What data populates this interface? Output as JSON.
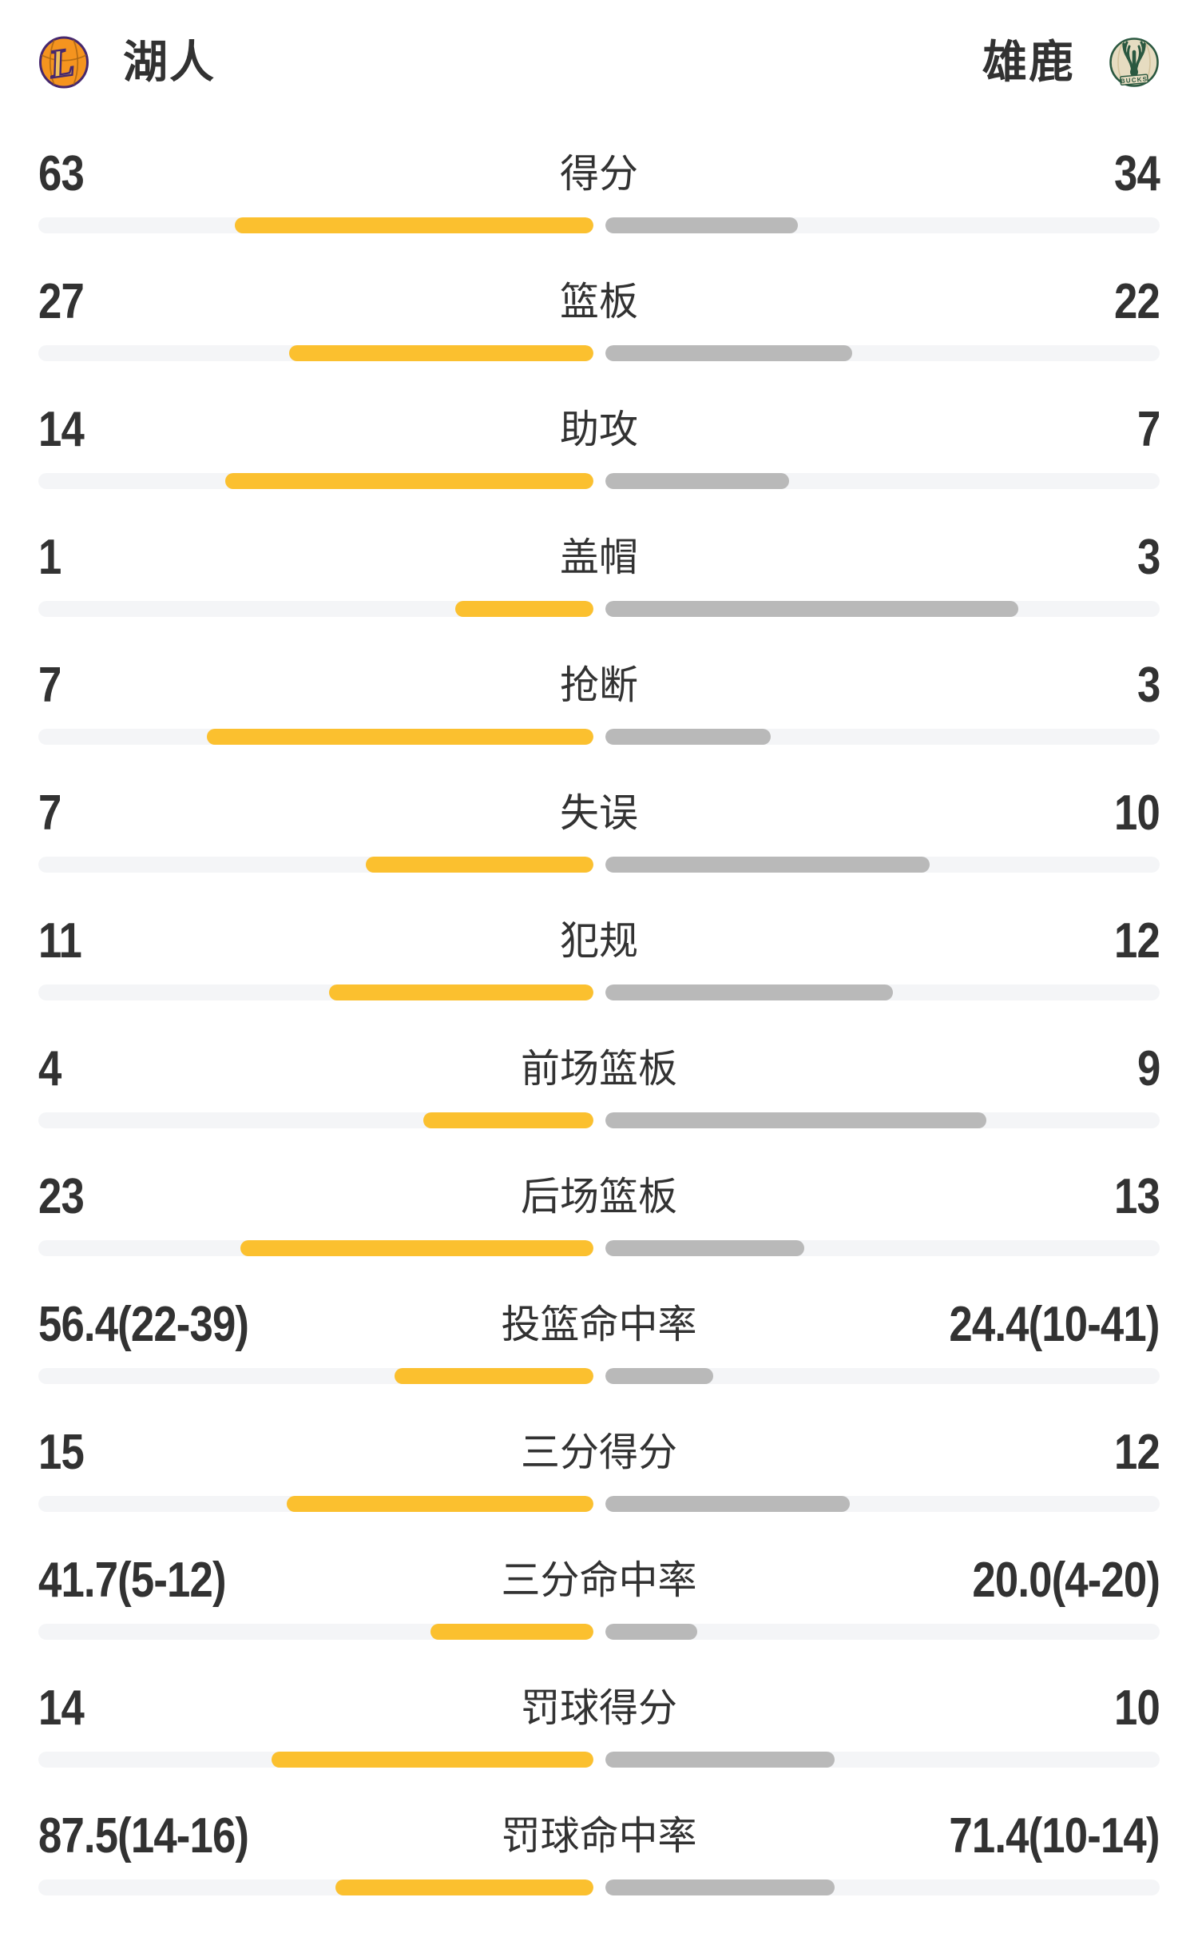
{
  "header": {
    "home_team": {
      "name": "湖人",
      "logo_icon": "lakers-logo"
    },
    "away_team": {
      "name": "雄鹿",
      "logo_icon": "bucks-logo"
    }
  },
  "colors": {
    "home_bar": "#fbc02f",
    "away_bar": "#b9b9b9",
    "track": "#f4f5f7",
    "text": "#323232",
    "lakers_purple": "#46286e",
    "lakers_orange": "#f5941f",
    "lakers_gold": "#efc05b",
    "bucks_green": "#2a5840",
    "bucks_cream": "#e6dcc1"
  },
  "stats": [
    {
      "label": "得分",
      "format": "count",
      "home": {
        "display": "63",
        "value": 63
      },
      "away": {
        "display": "34",
        "value": 34
      }
    },
    {
      "label": "篮板",
      "format": "count",
      "home": {
        "display": "27",
        "value": 27
      },
      "away": {
        "display": "22",
        "value": 22
      }
    },
    {
      "label": "助攻",
      "format": "count",
      "home": {
        "display": "14",
        "value": 14
      },
      "away": {
        "display": "7",
        "value": 7
      }
    },
    {
      "label": "盖帽",
      "format": "count",
      "home": {
        "display": "1",
        "value": 1
      },
      "away": {
        "display": "3",
        "value": 3
      }
    },
    {
      "label": "抢断",
      "format": "count",
      "home": {
        "display": "7",
        "value": 7
      },
      "away": {
        "display": "3",
        "value": 3
      }
    },
    {
      "label": "失误",
      "format": "count",
      "home": {
        "display": "7",
        "value": 7
      },
      "away": {
        "display": "10",
        "value": 10
      }
    },
    {
      "label": "犯规",
      "format": "count",
      "home": {
        "display": "11",
        "value": 11
      },
      "away": {
        "display": "12",
        "value": 12
      }
    },
    {
      "label": "前场篮板",
      "format": "count",
      "home": {
        "display": "4",
        "value": 4
      },
      "away": {
        "display": "9",
        "value": 9
      }
    },
    {
      "label": "后场篮板",
      "format": "count",
      "home": {
        "display": "23",
        "value": 23
      },
      "away": {
        "display": "13",
        "value": 13
      }
    },
    {
      "label": "投篮命中率",
      "format": "pct",
      "home": {
        "display": "56.4(22-39)",
        "value": 56.4
      },
      "away": {
        "display": "24.4(10-41)",
        "value": 24.4
      }
    },
    {
      "label": "三分得分",
      "format": "count",
      "home": {
        "display": "15",
        "value": 15
      },
      "away": {
        "display": "12",
        "value": 12
      }
    },
    {
      "label": "三分命中率",
      "format": "pct",
      "home": {
        "display": "41.7(5-12)",
        "value": 41.7
      },
      "away": {
        "display": "20.0(4-20)",
        "value": 20.0
      }
    },
    {
      "label": "罚球得分",
      "format": "count",
      "home": {
        "display": "14",
        "value": 14
      },
      "away": {
        "display": "10",
        "value": 10
      }
    },
    {
      "label": "罚球命中率",
      "format": "pct",
      "home": {
        "display": "87.5(14-16)",
        "value": 87.5
      },
      "away": {
        "display": "71.4(10-14)",
        "value": 71.4
      }
    }
  ],
  "chart_data": {
    "type": "bar",
    "orientation": "horizontal-diverging",
    "categories": [
      "得分",
      "篮板",
      "助攻",
      "盖帽",
      "抢断",
      "失误",
      "犯规",
      "前场篮板",
      "后场篮板",
      "投篮命中率",
      "三分得分",
      "三分命中率",
      "罚球得分",
      "罚球命中率"
    ],
    "series": [
      {
        "name": "湖人",
        "color": "#fbc02f",
        "values": [
          63,
          27,
          14,
          1,
          7,
          7,
          11,
          4,
          23,
          56.4,
          15,
          41.7,
          14,
          87.5
        ],
        "value_labels": [
          "63",
          "27",
          "14",
          "1",
          "7",
          "7",
          "11",
          "4",
          "23",
          "56.4(22-39)",
          "15",
          "41.7(5-12)",
          "14",
          "87.5(14-16)"
        ]
      },
      {
        "name": "雄鹿",
        "color": "#b9b9b9",
        "values": [
          34,
          22,
          7,
          3,
          3,
          10,
          12,
          9,
          13,
          24.4,
          12,
          20.0,
          10,
          71.4
        ],
        "value_labels": [
          "34",
          "22",
          "7",
          "3",
          "3",
          "10",
          "12",
          "9",
          "13",
          "24.4(10-41)",
          "12",
          "20.0(4-20)",
          "10",
          "71.4(10-14)"
        ]
      }
    ],
    "legend_position": "top",
    "grid": false
  }
}
